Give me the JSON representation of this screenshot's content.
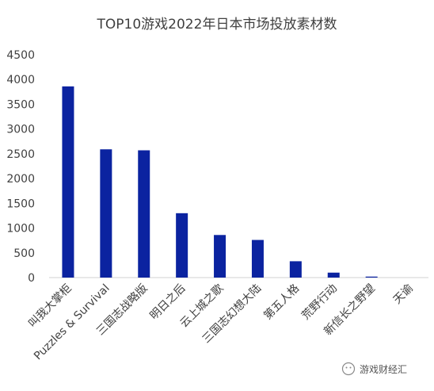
{
  "chart_data": {
    "type": "bar",
    "title": "TOP10游戏2022年日本市场投放素材数",
    "categories": [
      "叫我大掌柜",
      "Puzzles & Survival",
      "三国志战略版",
      "明日之后",
      "云上城之歌",
      "三国志幻想大陆",
      "第五人格",
      "荒野行动",
      "新信长之野望",
      "天谕"
    ],
    "values": [
      3860,
      2590,
      2570,
      1300,
      860,
      760,
      330,
      100,
      20,
      0
    ],
    "yticks": [
      "0",
      "500",
      "1000",
      "1500",
      "2000",
      "2500",
      "3000",
      "3500",
      "4000",
      "4500"
    ],
    "ylim": [
      0,
      4500
    ],
    "xlabel": "",
    "ylabel": "",
    "bar_color": "#0b23a0",
    "grid": false,
    "legend": "none"
  },
  "watermark": {
    "text": "游戏财经汇",
    "icon": "wechat-icon"
  }
}
